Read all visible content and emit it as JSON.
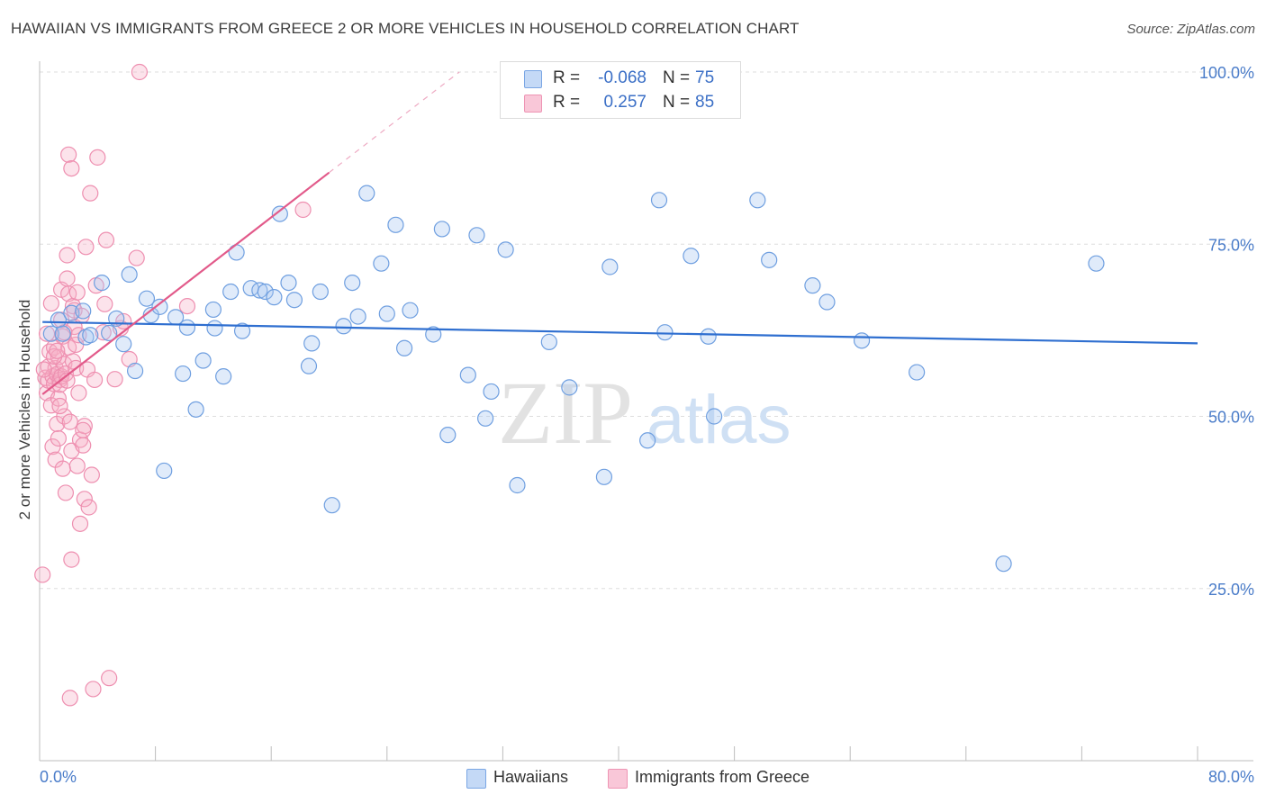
{
  "title": "HAWAIIAN VS IMMIGRANTS FROM GREECE 2 OR MORE VEHICLES IN HOUSEHOLD CORRELATION CHART",
  "source": "Source: ZipAtlas.com",
  "watermark": {
    "zip": "ZIP",
    "atlas": "atlas"
  },
  "legend_top": {
    "rows": [
      {
        "r_label": "R =",
        "r_value": "-0.068",
        "n_label": "N =",
        "n_value": "75"
      },
      {
        "r_label": "R =",
        "r_value": "0.257",
        "n_label": "N =",
        "n_value": "85"
      }
    ]
  },
  "legend_bottom": {
    "items": [
      "Hawaiians",
      "Immigrants from Greece"
    ]
  },
  "chart_data": {
    "type": "scatter",
    "title": "HAWAIIAN VS IMMIGRANTS FROM GREECE 2 OR MORE VEHICLES IN HOUSEHOLD CORRELATION CHART",
    "xlabel": "",
    "ylabel": "2 or more Vehicles in Household",
    "xlim": [
      0,
      80
    ],
    "ylim": [
      0,
      100
    ],
    "x_tick_labels": [
      "0.0%",
      "80.0%"
    ],
    "y_ticks": [
      25,
      50,
      75,
      100
    ],
    "y_tick_labels": [
      "25.0%",
      "50.0%",
      "75.0%",
      "100.0%"
    ],
    "grid": true,
    "colors": {
      "hawaiians": "#6f9fe0",
      "greece": "#ee8fb0",
      "line_blue": "#2f6fd0",
      "line_pink": "#e25a8a"
    },
    "series": [
      {
        "name": "Hawaiians",
        "R": -0.068,
        "N": 75,
        "trend": {
          "x0": 0.2,
          "y0": 63.7,
          "x1": 80.0,
          "y1": 60.6
        },
        "points": [
          [
            0.8,
            62.0
          ],
          [
            1.3,
            64.0
          ],
          [
            1.6,
            62.0
          ],
          [
            2.2,
            65.0
          ],
          [
            3.0,
            65.3
          ],
          [
            3.2,
            61.5
          ],
          [
            3.5,
            61.8
          ],
          [
            4.3,
            69.4
          ],
          [
            4.8,
            62.1
          ],
          [
            5.3,
            64.2
          ],
          [
            5.8,
            60.5
          ],
          [
            6.2,
            70.6
          ],
          [
            6.6,
            56.6
          ],
          [
            7.4,
            67.1
          ],
          [
            7.7,
            64.7
          ],
          [
            8.3,
            65.9
          ],
          [
            8.6,
            42.1
          ],
          [
            9.4,
            64.4
          ],
          [
            9.9,
            56.2
          ],
          [
            10.2,
            62.9
          ],
          [
            10.8,
            51.0
          ],
          [
            11.3,
            58.1
          ],
          [
            12.0,
            65.5
          ],
          [
            12.1,
            62.8
          ],
          [
            12.7,
            55.8
          ],
          [
            13.2,
            68.1
          ],
          [
            13.6,
            73.8
          ],
          [
            14.0,
            62.4
          ],
          [
            14.6,
            68.6
          ],
          [
            15.2,
            68.3
          ],
          [
            15.6,
            68.1
          ],
          [
            16.2,
            67.3
          ],
          [
            16.6,
            79.4
          ],
          [
            17.2,
            69.4
          ],
          [
            17.6,
            66.9
          ],
          [
            18.6,
            57.3
          ],
          [
            18.8,
            60.6
          ],
          [
            19.4,
            68.1
          ],
          [
            20.2,
            37.1
          ],
          [
            21.0,
            63.1
          ],
          [
            21.6,
            69.4
          ],
          [
            22.0,
            64.5
          ],
          [
            22.6,
            82.4
          ],
          [
            23.6,
            72.2
          ],
          [
            24.0,
            64.9
          ],
          [
            24.6,
            77.8
          ],
          [
            25.2,
            59.9
          ],
          [
            25.6,
            65.4
          ],
          [
            27.2,
            61.9
          ],
          [
            27.8,
            77.2
          ],
          [
            28.2,
            47.3
          ],
          [
            29.6,
            56.0
          ],
          [
            30.2,
            76.3
          ],
          [
            30.8,
            49.7
          ],
          [
            31.2,
            53.6
          ],
          [
            32.2,
            74.2
          ],
          [
            33.0,
            40.0
          ],
          [
            35.2,
            60.8
          ],
          [
            36.6,
            54.2
          ],
          [
            39.0,
            41.2
          ],
          [
            39.4,
            71.7
          ],
          [
            42.0,
            46.5
          ],
          [
            42.8,
            81.4
          ],
          [
            43.2,
            62.2
          ],
          [
            45.0,
            73.3
          ],
          [
            46.2,
            61.6
          ],
          [
            46.6,
            50.0
          ],
          [
            49.6,
            81.4
          ],
          [
            50.4,
            72.7
          ],
          [
            53.4,
            69.0
          ],
          [
            54.4,
            66.6
          ],
          [
            60.6,
            56.4
          ],
          [
            66.6,
            28.6
          ],
          [
            73.0,
            72.2
          ],
          [
            56.8,
            61.0
          ]
        ]
      },
      {
        "name": "Immigrants from Greece",
        "R": 0.257,
        "N": 85,
        "trend": {
          "x0": 0.2,
          "y0": 53.2,
          "x1": 20.0,
          "y1": 85.4
        },
        "trend_dashed_to": {
          "x": 29.0,
          "y": 100.0
        },
        "points": [
          [
            0.2,
            27.0
          ],
          [
            0.4,
            55.6
          ],
          [
            0.5,
            53.4
          ],
          [
            0.6,
            57.2
          ],
          [
            0.6,
            55.2
          ],
          [
            0.7,
            59.4
          ],
          [
            0.8,
            51.6
          ],
          [
            0.8,
            66.4
          ],
          [
            0.9,
            55.8
          ],
          [
            0.9,
            45.6
          ],
          [
            1.0,
            54.7
          ],
          [
            1.0,
            60.0
          ],
          [
            1.1,
            43.7
          ],
          [
            1.1,
            57.0
          ],
          [
            1.2,
            56.1
          ],
          [
            1.2,
            48.9
          ],
          [
            1.3,
            52.6
          ],
          [
            1.3,
            46.8
          ],
          [
            1.3,
            58.6
          ],
          [
            1.4,
            55.3
          ],
          [
            1.4,
            54.6
          ],
          [
            1.5,
            55.8
          ],
          [
            1.5,
            68.4
          ],
          [
            1.5,
            64.0
          ],
          [
            1.6,
            42.4
          ],
          [
            1.6,
            61.6
          ],
          [
            1.7,
            50.0
          ],
          [
            1.7,
            57.6
          ],
          [
            1.8,
            38.9
          ],
          [
            1.8,
            56.2
          ],
          [
            1.9,
            55.2
          ],
          [
            1.9,
            70.0
          ],
          [
            1.9,
            73.4
          ],
          [
            2.0,
            67.8
          ],
          [
            2.0,
            88.0
          ],
          [
            2.0,
            60.0
          ],
          [
            2.1,
            9.1
          ],
          [
            2.2,
            45.0
          ],
          [
            2.2,
            29.2
          ],
          [
            2.2,
            86.0
          ],
          [
            2.3,
            58.0
          ],
          [
            2.3,
            66.0
          ],
          [
            2.4,
            63.0
          ],
          [
            2.4,
            65.4
          ],
          [
            2.5,
            57.0
          ],
          [
            2.5,
            60.4
          ],
          [
            2.6,
            68.0
          ],
          [
            2.7,
            61.8
          ],
          [
            2.8,
            34.4
          ],
          [
            2.8,
            46.6
          ],
          [
            2.9,
            64.6
          ],
          [
            3.0,
            45.8
          ],
          [
            3.1,
            48.6
          ],
          [
            3.1,
            38.0
          ],
          [
            3.2,
            74.6
          ],
          [
            3.3,
            56.8
          ],
          [
            3.4,
            36.8
          ],
          [
            3.5,
            82.4
          ],
          [
            3.6,
            41.5
          ],
          [
            3.7,
            10.4
          ],
          [
            3.8,
            55.3
          ],
          [
            3.9,
            69.0
          ],
          [
            4.0,
            87.6
          ],
          [
            4.4,
            62.2
          ],
          [
            4.5,
            66.3
          ],
          [
            4.6,
            75.6
          ],
          [
            4.8,
            12.0
          ],
          [
            5.2,
            55.4
          ],
          [
            5.6,
            62.8
          ],
          [
            5.8,
            63.8
          ],
          [
            6.2,
            58.3
          ],
          [
            6.7,
            73.0
          ],
          [
            6.9,
            100.0
          ],
          [
            10.2,
            66.0
          ],
          [
            18.2,
            80.0
          ],
          [
            1.4,
            51.5
          ],
          [
            2.7,
            53.4
          ],
          [
            1.0,
            58.7
          ],
          [
            0.5,
            62.0
          ],
          [
            2.1,
            49.2
          ],
          [
            3.0,
            48.0
          ],
          [
            1.7,
            62.2
          ],
          [
            0.3,
            56.8
          ],
          [
            2.6,
            42.8
          ],
          [
            1.2,
            59.5
          ]
        ]
      }
    ]
  }
}
